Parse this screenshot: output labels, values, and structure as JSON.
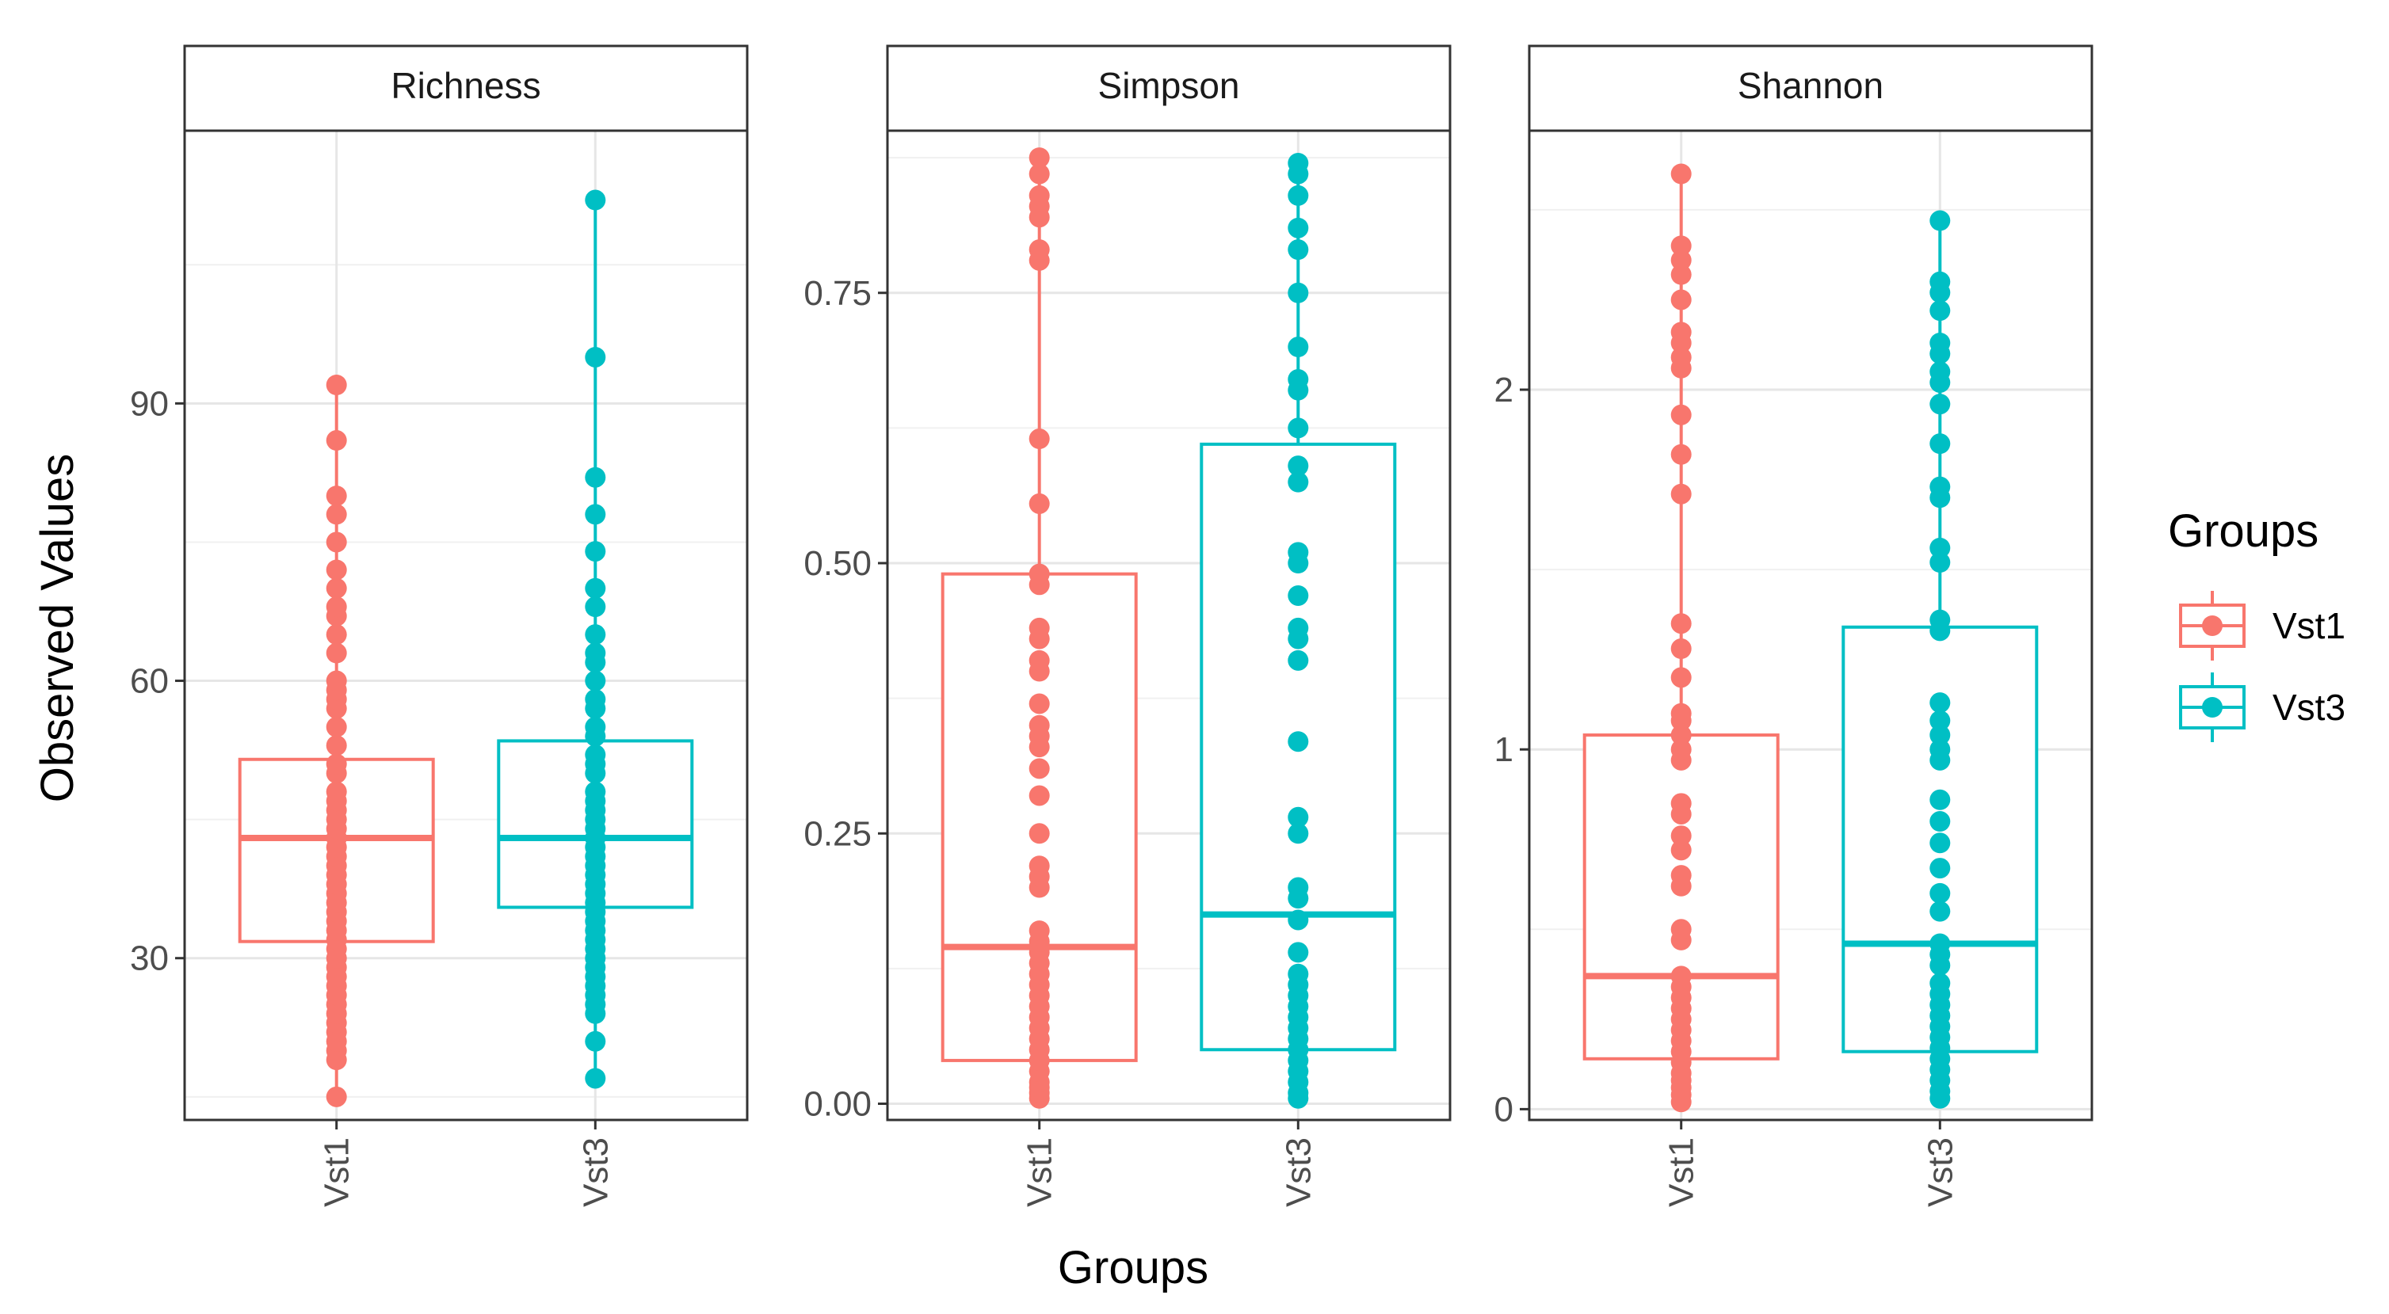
{
  "chart_data": {
    "type": "boxplot",
    "xlabel": "Groups",
    "ylabel": "Observed Values",
    "categories": [
      "Vst1",
      "Vst3"
    ],
    "legend": {
      "title": "Groups",
      "position": "right",
      "entries": [
        {
          "label": "Vst1",
          "color": "#F8766D"
        },
        {
          "label": "Vst3",
          "color": "#00BFC4"
        }
      ]
    },
    "panels": [
      {
        "title": "Richness",
        "ylim": [
          12.5,
          119.5
        ],
        "yticks": [
          30,
          60,
          90
        ],
        "ytick_labels": [
          "30",
          "60",
          "90"
        ],
        "series": [
          {
            "name": "Vst1",
            "box": {
              "q1": 31.8,
              "median": 43,
              "q3": 51.5
            },
            "whiskers": [
              15,
              92
            ],
            "points": [
              15,
              19,
              20,
              21,
              22,
              23,
              24,
              25,
              26,
              27,
              28,
              29,
              30,
              31,
              32,
              33,
              34,
              35,
              36,
              37,
              38,
              39,
              40,
              41,
              42,
              43,
              44,
              45,
              46,
              47,
              48,
              50,
              51,
              53,
              55,
              57,
              58,
              59,
              60,
              63,
              65,
              67,
              68,
              70,
              72,
              75,
              78,
              80,
              86,
              92
            ]
          },
          {
            "name": "Vst3",
            "box": {
              "q1": 35.5,
              "median": 43,
              "q3": 53.5
            },
            "whiskers": [
              17,
              112
            ],
            "points": [
              17,
              21,
              24,
              25,
              26,
              27,
              28,
              29,
              30,
              31,
              32,
              33,
              34,
              35,
              36,
              37,
              38,
              39,
              40,
              41,
              42,
              43,
              44,
              45,
              46,
              47,
              48,
              50,
              51,
              52,
              54,
              55,
              57,
              58,
              60,
              62,
              63,
              65,
              68,
              70,
              74,
              78,
              82,
              95,
              112
            ]
          }
        ]
      },
      {
        "title": "Simpson",
        "ylim": [
          -0.015,
          0.9
        ],
        "yticks": [
          0,
          0.25,
          0.5,
          0.75
        ],
        "ytick_labels": [
          "0.00",
          "0.25",
          "0.50",
          "0.75"
        ],
        "series": [
          {
            "name": "Vst1",
            "box": {
              "q1": 0.04,
              "median": 0.145,
              "q3": 0.49
            },
            "whiskers": [
              0.005,
              0.875
            ],
            "points": [
              0.005,
              0.01,
              0.015,
              0.02,
              0.03,
              0.04,
              0.05,
              0.06,
              0.07,
              0.08,
              0.09,
              0.1,
              0.11,
              0.12,
              0.13,
              0.14,
              0.15,
              0.16,
              0.2,
              0.21,
              0.22,
              0.25,
              0.285,
              0.31,
              0.33,
              0.34,
              0.35,
              0.37,
              0.4,
              0.41,
              0.43,
              0.44,
              0.48,
              0.49,
              0.555,
              0.615,
              0.78,
              0.79,
              0.82,
              0.83,
              0.84,
              0.86,
              0.875
            ]
          },
          {
            "name": "Vst3",
            "box": {
              "q1": 0.05,
              "median": 0.175,
              "q3": 0.61
            },
            "whiskers": [
              0.005,
              0.87
            ],
            "points": [
              0.005,
              0.01,
              0.02,
              0.03,
              0.04,
              0.05,
              0.06,
              0.07,
              0.08,
              0.09,
              0.1,
              0.11,
              0.12,
              0.14,
              0.17,
              0.19,
              0.2,
              0.25,
              0.265,
              0.335,
              0.41,
              0.43,
              0.44,
              0.47,
              0.5,
              0.51,
              0.575,
              0.59,
              0.625,
              0.66,
              0.67,
              0.7,
              0.75,
              0.79,
              0.81,
              0.84,
              0.86,
              0.87
            ]
          }
        ]
      },
      {
        "title": "Shannon",
        "ylim": [
          -0.03,
          2.72
        ],
        "yticks": [
          0,
          1,
          2
        ],
        "ytick_labels": [
          "0",
          "1",
          "2"
        ],
        "series": [
          {
            "name": "Vst1",
            "box": {
              "q1": 0.14,
              "median": 0.37,
              "q3": 1.04
            },
            "whiskers": [
              0.02,
              2.6
            ],
            "points": [
              0.02,
              0.04,
              0.06,
              0.08,
              0.1,
              0.13,
              0.16,
              0.19,
              0.22,
              0.25,
              0.28,
              0.31,
              0.34,
              0.37,
              0.47,
              0.5,
              0.62,
              0.65,
              0.72,
              0.76,
              0.82,
              0.85,
              0.97,
              1.0,
              1.04,
              1.08,
              1.1,
              1.2,
              1.28,
              1.35,
              1.71,
              1.82,
              1.93,
              2.06,
              2.09,
              2.13,
              2.16,
              2.25,
              2.32,
              2.36,
              2.4,
              2.6
            ]
          },
          {
            "name": "Vst3",
            "box": {
              "q1": 0.16,
              "median": 0.46,
              "q3": 1.34
            },
            "whiskers": [
              0.03,
              2.47
            ],
            "points": [
              0.03,
              0.05,
              0.08,
              0.11,
              0.14,
              0.17,
              0.2,
              0.23,
              0.26,
              0.29,
              0.32,
              0.35,
              0.4,
              0.43,
              0.46,
              0.55,
              0.6,
              0.67,
              0.74,
              0.8,
              0.86,
              0.97,
              1.0,
              1.04,
              1.08,
              1.13,
              1.33,
              1.36,
              1.52,
              1.56,
              1.7,
              1.73,
              1.85,
              1.96,
              2.02,
              2.05,
              2.1,
              2.13,
              2.22,
              2.27,
              2.3,
              2.47
            ]
          }
        ]
      }
    ]
  }
}
